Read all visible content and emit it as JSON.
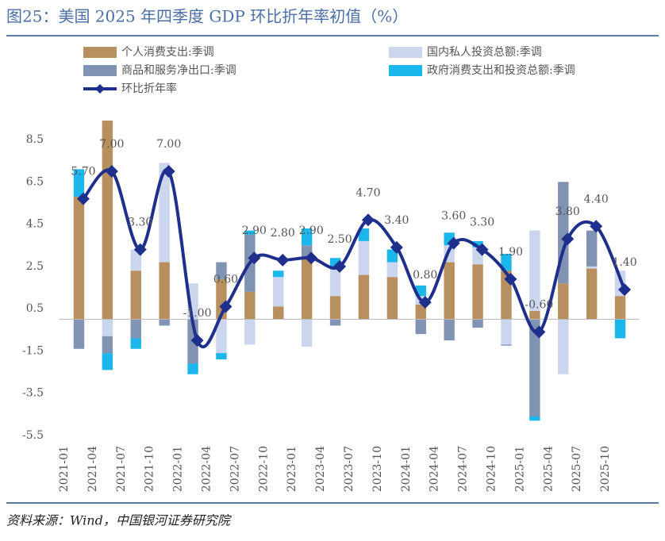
{
  "chart_data": {
    "type": "bar",
    "title": "图25：美国 2025 年四季度 GDP 环比折年率初值（%）",
    "source": "资料来源：Wind，中国银河证券研究院",
    "categories": [
      "2021-01",
      "2021-04",
      "2021-07",
      "2021-10",
      "2022-01",
      "2022-04",
      "2022-07",
      "2022-10",
      "2023-01",
      "2023-04",
      "2023-07",
      "2023-10",
      "2024-01",
      "2024-04",
      "2024-07",
      "2024-10",
      "2025-01",
      "2025-04",
      "2025-07",
      "2025-10"
    ],
    "series": [
      {
        "name": "个人消费支出:季调",
        "color": "#b8905f",
        "values": [
          5.8,
          9.4,
          2.3,
          2.7,
          0,
          1.9,
          1.3,
          0.6,
          2.9,
          1.1,
          2.1,
          2.0,
          0.7,
          2.7,
          2.6,
          2.3,
          0.4,
          1.7,
          2.4,
          1.1
        ]
      },
      {
        "name": "国内私人投资总额:季调",
        "color": "#cbd5ee",
        "values": [
          0,
          -0.8,
          1.0,
          4.7,
          1.7,
          -1.6,
          -1.2,
          1.4,
          -1.3,
          1.4,
          1.6,
          0.7,
          0.4,
          0.8,
          0.8,
          -1.2,
          3.8,
          -2.6,
          0.1,
          1.2
        ]
      },
      {
        "name": "商品和服务净出口:季调",
        "color": "#8093b3",
        "values": [
          -1.4,
          -0.8,
          -0.9,
          -0.3,
          -2.1,
          0.8,
          2.7,
          0,
          0.6,
          -0.3,
          0,
          0,
          -0.7,
          -1.0,
          -0.4,
          -0.05,
          -4.6,
          4.8,
          1.7,
          0
        ]
      },
      {
        "name": "政府消费支出和投资总额:季调",
        "color": "#1bb7ea",
        "values": [
          1.3,
          -0.8,
          -0.5,
          0,
          -0.5,
          -0.3,
          0.2,
          0.3,
          0.8,
          0.4,
          0.6,
          0.6,
          0.5,
          0.6,
          0.3,
          0.8,
          -0.2,
          0,
          0,
          -0.9
        ]
      },
      {
        "name": "环比折年率",
        "type": "line",
        "color": "#1f2f8c",
        "values": [
          5.7,
          7.0,
          3.3,
          7.0,
          -1.0,
          0.6,
          2.9,
          2.8,
          2.9,
          2.5,
          4.7,
          3.4,
          0.8,
          3.6,
          3.3,
          1.9,
          -0.6,
          3.8,
          4.4,
          1.4
        ],
        "value_labels": [
          "5.70",
          "7.00",
          "3.30",
          "7.00",
          "-1.00",
          "0.60",
          "2.90",
          "2.80",
          "2.90",
          "2.50",
          "4.70",
          "3.40",
          "0.80",
          "3.60",
          "3.30",
          "1.90",
          "-0.60",
          "3.80",
          "4.40",
          "1.40"
        ]
      }
    ],
    "ylim": [
      -5.5,
      9.5
    ],
    "yticks": [
      8.5,
      6.5,
      4.5,
      2.5,
      0.5,
      -1.5,
      -3.5,
      -5.5
    ],
    "grid": false
  }
}
